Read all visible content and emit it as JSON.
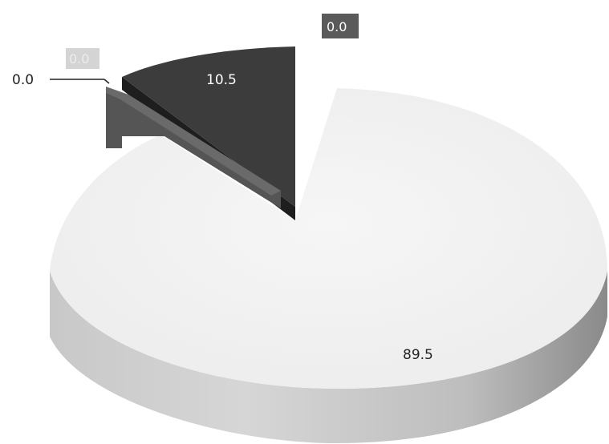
{
  "chart_data": {
    "type": "pie",
    "style": "3d-exploded",
    "slices": [
      {
        "value": 89.5,
        "label": "89.5",
        "color": "#f2f2f2",
        "side_color": "#9a9a9a"
      },
      {
        "value": 10.5,
        "label": "10.5",
        "color": "#3c3c3c",
        "side_color": "#1e1e1e"
      },
      {
        "value": 0.0,
        "label": "0.0",
        "color": "#d4d4d4",
        "side_color": "#a8a8a8"
      },
      {
        "value": 0.0,
        "label": "0.0",
        "color": "#5a5a5a",
        "side_color": "#333333"
      }
    ],
    "title": "",
    "legend": "none"
  }
}
